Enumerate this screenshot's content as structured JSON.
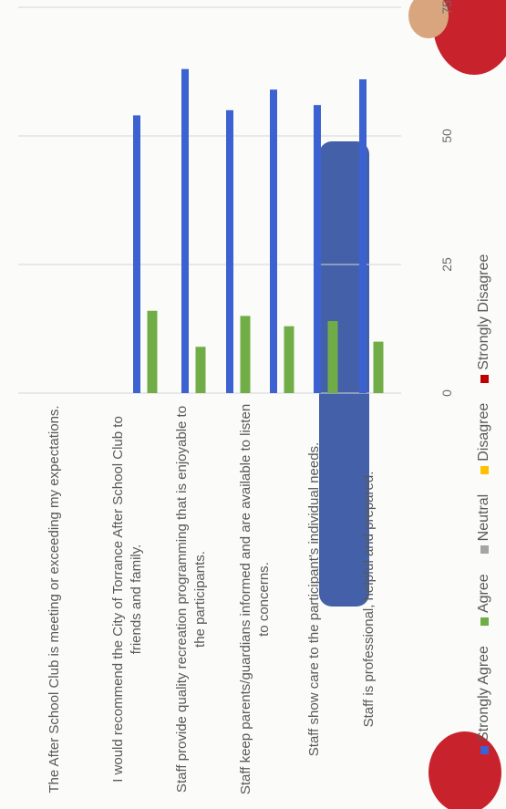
{
  "chart_data": {
    "type": "bar",
    "orientation": "horizontal",
    "categories": [
      "The After School Club is meeting or exceeding my expectations.",
      "I would recommend the City of Torrance After School Club to friends and family.",
      "Staff provide quality recreation programming that is enjoyable to the participants.",
      "Staff keep parents/guardians informed and are available to listen to concerns.",
      "Staff show care to the participant's individual needs.",
      "Staff is professional, helpful and prepared."
    ],
    "series": [
      {
        "name": "Strongly Agree",
        "color": "#3b62d0",
        "values": [
          54,
          63,
          55,
          59,
          56,
          61
        ]
      },
      {
        "name": "Agree",
        "color": "#70ad47",
        "values": [
          16,
          9,
          15,
          13,
          14,
          10
        ]
      },
      {
        "name": "Neutral",
        "color": "#a5a5a5",
        "values": [
          null,
          null,
          null,
          null,
          null,
          null
        ]
      },
      {
        "name": "Disagree",
        "color": "#ffc000",
        "values": [
          null,
          null,
          null,
          null,
          null,
          null
        ]
      },
      {
        "name": "Strongly Disagree",
        "color": "#c00000",
        "values": [
          null,
          null,
          null,
          null,
          null,
          null
        ]
      }
    ],
    "xlim": [
      0,
      75
    ],
    "xticks": [
      0,
      25,
      50,
      75
    ],
    "grid": true,
    "legend": "bottom"
  }
}
